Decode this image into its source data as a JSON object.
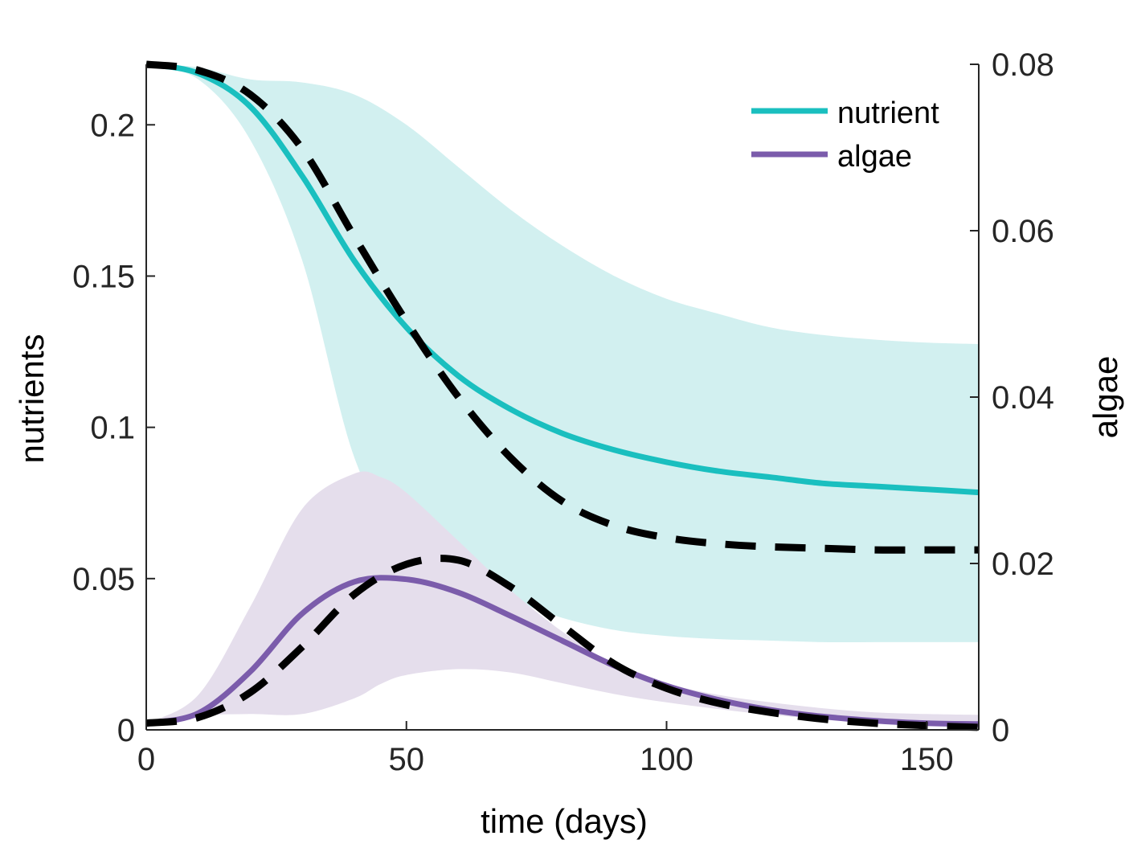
{
  "chart_data": {
    "type": "line",
    "title": "",
    "xlabel": "time (days)",
    "ylabel_left": "nutrients",
    "ylabel_right": "algae",
    "xlim": [
      0,
      160
    ],
    "ylim_left": [
      0,
      0.22
    ],
    "ylim_right": [
      0,
      0.08
    ],
    "grid": false,
    "legend_position": "top-right",
    "x_ticks": [
      0,
      50,
      100,
      150
    ],
    "x_tick_labels": [
      "0",
      "50",
      "100",
      "150"
    ],
    "y_left_ticks": [
      0,
      0.05,
      0.1,
      0.15,
      0.2
    ],
    "y_left_tick_labels": [
      "0",
      "0.05",
      "0.1",
      "0.15",
      "0.2"
    ],
    "y_right_ticks": [
      0,
      0.02,
      0.04,
      0.06,
      0.08
    ],
    "y_right_tick_labels": [
      "0",
      "0.02",
      "0.04",
      "0.06",
      "0.08"
    ],
    "colors": {
      "nutrient": "#1ABFBF",
      "nutrient_band": "#D2F0F0",
      "algae": "#7B5CAB",
      "algae_band": "#E5DEEC",
      "dashed": "#000000"
    },
    "x": [
      0,
      10,
      20,
      30,
      40,
      50,
      60,
      70,
      80,
      90,
      100,
      110,
      120,
      130,
      140,
      150,
      160
    ],
    "series": [
      {
        "name": "nutrient",
        "axis": "left",
        "style": "solid",
        "values": [
          0.22,
          0.217,
          0.206,
          0.183,
          0.155,
          0.133,
          0.117,
          0.106,
          0.098,
          0.0925,
          0.0885,
          0.0855,
          0.0835,
          0.0815,
          0.0805,
          0.0795,
          0.0785
        ]
      },
      {
        "name": "",
        "axis": "left",
        "style": "dashed",
        "values": [
          0.22,
          0.218,
          0.21,
          0.192,
          0.163,
          0.135,
          0.11,
          0.09,
          0.0755,
          0.0675,
          0.0635,
          0.0615,
          0.0605,
          0.06,
          0.0595,
          0.0595,
          0.0595
        ]
      },
      {
        "name": "algae",
        "axis": "right",
        "style": "solid",
        "values": [
          0.0008,
          0.002,
          0.007,
          0.014,
          0.0178,
          0.0181,
          0.0165,
          0.0137,
          0.0107,
          0.0077,
          0.0053,
          0.0036,
          0.0024,
          0.0016,
          0.0011,
          0.0008,
          0.0007
        ]
      },
      {
        "name": "",
        "axis": "right",
        "style": "dashed",
        "values": [
          0.0008,
          0.0015,
          0.0045,
          0.01,
          0.0163,
          0.0199,
          0.0204,
          0.0172,
          0.0125,
          0.0079,
          0.005,
          0.0032,
          0.0021,
          0.0013,
          0.0008,
          0.0005,
          0.0003
        ]
      }
    ],
    "bands": [
      {
        "axis": "left",
        "color_key": "nutrient_band",
        "x": [
          0,
          10,
          20,
          30,
          40,
          50,
          60,
          70,
          80,
          90,
          100,
          110,
          120,
          130,
          140,
          150,
          160
        ],
        "upper": [
          0.22,
          0.219,
          0.215,
          0.214,
          0.21,
          0.2,
          0.186,
          0.172,
          0.16,
          0.15,
          0.1425,
          0.1375,
          0.133,
          0.1305,
          0.129,
          0.128,
          0.1275
        ],
        "lower": [
          0.22,
          0.215,
          0.195,
          0.155,
          0.09,
          0.06,
          0.05,
          0.043,
          0.037,
          0.033,
          0.031,
          0.03,
          0.0295,
          0.029,
          0.029,
          0.029,
          0.029
        ]
      },
      {
        "axis": "right",
        "color_key": "algae_band",
        "x": [
          0,
          10,
          20,
          30,
          40,
          45,
          50,
          60,
          70,
          80,
          90,
          100,
          110,
          120,
          130,
          140,
          150,
          160
        ],
        "upper": [
          0.0008,
          0.0042,
          0.0148,
          0.0266,
          0.0308,
          0.0304,
          0.0285,
          0.0227,
          0.0168,
          0.0118,
          0.0079,
          0.0056,
          0.0042,
          0.0033,
          0.0026,
          0.0021,
          0.0019,
          0.0018
        ],
        "lower": [
          0.0008,
          0.0017,
          0.0019,
          0.0019,
          0.0038,
          0.0055,
          0.0066,
          0.0073,
          0.0069,
          0.0056,
          0.0043,
          0.0033,
          0.0025,
          0.0018,
          0.0013,
          0.001,
          0.0008,
          0.0007
        ]
      }
    ]
  }
}
